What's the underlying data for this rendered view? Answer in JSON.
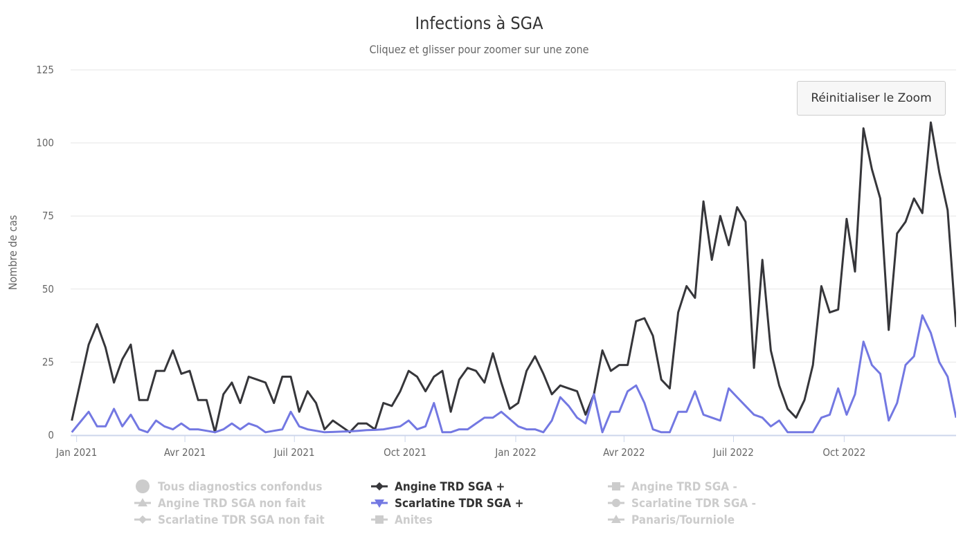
{
  "chart_data": {
    "type": "line",
    "title": "Infections à SGA",
    "subtitle": "Cliquez et glisser pour zoomer sur une zone",
    "ylabel": "Nombre de cas",
    "xlabel": "",
    "ylim": [
      0,
      125
    ],
    "yticks": [
      0,
      25,
      50,
      75,
      100,
      125
    ],
    "xlim": [
      "2020-12-27",
      "2023-01-02"
    ],
    "xticks": [
      {
        "date": "2021-01-01",
        "label": "Jan 2021"
      },
      {
        "date": "2021-04-01",
        "label": "Avr 2021"
      },
      {
        "date": "2021-07-01",
        "label": "Juil 2021"
      },
      {
        "date": "2021-10-01",
        "label": "Oct 2021"
      },
      {
        "date": "2022-01-01",
        "label": "Jan 2022"
      },
      {
        "date": "2022-04-01",
        "label": "Avr 2022"
      },
      {
        "date": "2022-07-01",
        "label": "Juil 2022"
      },
      {
        "date": "2022-10-01",
        "label": "Oct 2022"
      }
    ],
    "grid": true,
    "legend_placement": "bottom",
    "x": [
      "2020-12-28",
      "2021-01-04",
      "2021-01-11",
      "2021-01-18",
      "2021-01-25",
      "2021-02-01",
      "2021-02-08",
      "2021-02-15",
      "2021-02-22",
      "2021-03-01",
      "2021-03-08",
      "2021-03-15",
      "2021-03-22",
      "2021-03-29",
      "2021-04-05",
      "2021-04-12",
      "2021-04-19",
      "2021-04-26",
      "2021-05-03",
      "2021-05-10",
      "2021-05-17",
      "2021-05-24",
      "2021-05-31",
      "2021-06-07",
      "2021-06-14",
      "2021-06-21",
      "2021-06-28",
      "2021-07-05",
      "2021-07-12",
      "2021-07-19",
      "2021-07-26",
      "2021-08-02",
      "2021-08-09",
      "2021-08-16",
      "2021-08-23",
      "2021-08-30",
      "2021-09-06",
      "2021-09-13",
      "2021-09-20",
      "2021-09-27",
      "2021-10-04",
      "2021-10-11",
      "2021-10-18",
      "2021-10-25",
      "2021-11-01",
      "2021-11-08",
      "2021-11-15",
      "2021-11-22",
      "2021-11-29",
      "2021-12-06",
      "2021-12-13",
      "2021-12-20",
      "2021-12-27",
      "2022-01-03",
      "2022-01-10",
      "2022-01-17",
      "2022-01-24",
      "2022-01-31",
      "2022-02-07",
      "2022-02-14",
      "2022-02-21",
      "2022-02-28",
      "2022-03-07",
      "2022-03-14",
      "2022-03-21",
      "2022-03-28",
      "2022-04-04",
      "2022-04-11",
      "2022-04-18",
      "2022-04-25",
      "2022-05-02",
      "2022-05-09",
      "2022-05-16",
      "2022-05-23",
      "2022-05-30",
      "2022-06-06",
      "2022-06-13",
      "2022-06-20",
      "2022-06-27",
      "2022-07-04",
      "2022-07-11",
      "2022-07-18",
      "2022-07-25",
      "2022-08-01",
      "2022-08-08",
      "2022-08-15",
      "2022-08-22",
      "2022-08-29",
      "2022-09-05",
      "2022-09-12",
      "2022-09-19",
      "2022-09-26",
      "2022-10-03",
      "2022-10-10",
      "2022-10-17",
      "2022-10-24",
      "2022-10-31",
      "2022-11-07",
      "2022-11-14",
      "2022-11-21",
      "2022-11-28",
      "2022-12-05",
      "2022-12-12",
      "2022-12-19",
      "2022-12-26",
      "2023-01-02"
    ],
    "series": [
      {
        "name": "Angine TRD SGA +",
        "color": "#36363a",
        "marker": "diamond",
        "values": [
          5,
          18,
          31,
          38,
          30,
          18,
          26,
          31,
          12,
          12,
          22,
          22,
          29,
          21,
          22,
          12,
          12,
          1,
          14,
          18,
          11,
          20,
          19,
          18,
          11,
          20,
          20,
          8,
          15,
          11,
          2,
          5,
          3,
          1,
          4,
          4,
          2,
          11,
          10,
          15,
          22,
          20,
          15,
          20,
          22,
          8,
          19,
          23,
          22,
          18,
          28,
          18,
          9,
          11,
          22,
          27,
          21,
          14,
          17,
          16,
          15,
          7,
          14,
          29,
          22,
          24,
          24,
          39,
          40,
          34,
          19,
          16,
          42,
          51,
          47,
          80,
          60,
          75,
          65,
          78,
          73,
          23,
          60,
          29,
          17,
          9,
          6,
          12,
          24,
          51,
          42,
          43,
          74,
          56,
          105,
          91,
          81,
          36,
          69,
          73,
          81,
          76,
          107,
          90,
          77,
          37
        ]
      },
      {
        "name": "Scarlatine TDR SGA +",
        "color": "#7378e2",
        "marker": "triangle-down",
        "values": [
          1,
          4.5,
          8,
          3,
          3,
          9,
          3,
          7,
          2,
          1,
          5,
          3,
          2,
          4,
          2,
          2,
          1.5,
          1,
          2,
          4,
          2,
          4,
          3,
          1,
          1.5,
          2,
          8,
          3,
          2,
          1.5,
          1,
          1.1,
          1.2,
          1.3,
          1.5,
          1.7,
          1.8,
          2,
          2.5,
          3,
          5,
          2,
          3,
          11,
          1,
          1,
          2,
          2,
          4,
          6,
          6,
          8,
          5.5,
          3,
          2,
          2,
          1,
          5,
          13,
          10,
          6,
          4,
          14,
          1,
          8,
          8,
          15,
          17,
          11,
          2,
          1,
          1,
          8,
          8,
          15,
          7,
          6,
          5,
          16,
          13,
          10,
          7,
          6,
          3,
          5,
          1,
          1,
          1,
          1,
          6,
          7,
          16,
          7,
          14,
          32,
          24,
          21,
          5,
          11,
          24,
          27,
          41,
          35,
          25,
          20,
          6
        ]
      }
    ],
    "legend": [
      {
        "label": "Tous diagnostics confondus",
        "marker": "circle",
        "visible": false
      },
      {
        "label": "Angine TRD SGA +",
        "marker": "diamond",
        "visible": true,
        "color": "#36363a"
      },
      {
        "label": "Angine TRD SGA -",
        "marker": "square",
        "visible": false
      },
      {
        "label": "Angine TRD SGA non fait",
        "marker": "triangle",
        "visible": false
      },
      {
        "label": "Scarlatine TDR SGA +",
        "marker": "triangle-down",
        "visible": true,
        "color": "#7378e2"
      },
      {
        "label": "Scarlatine TDR SGA -",
        "marker": "circle",
        "visible": false
      },
      {
        "label": "Scarlatine TDR SGA non fait",
        "marker": "diamond",
        "visible": false
      },
      {
        "label": "Anites",
        "marker": "square",
        "visible": false
      },
      {
        "label": "Panaris/Tourniole",
        "marker": "triangle",
        "visible": false
      }
    ]
  },
  "reset_zoom_label": "Réinitialiser le Zoom",
  "hidden_color": "#cccccc"
}
